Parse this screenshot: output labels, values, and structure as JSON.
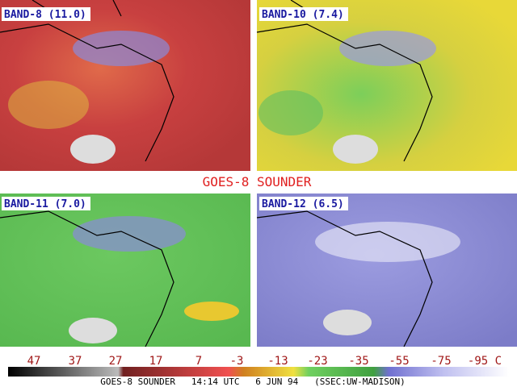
{
  "title": "GOES-8 SOUNDER",
  "panels": [
    {
      "label": "BAND-8 (11.0)"
    },
    {
      "label": "BAND-10 (7.4)"
    },
    {
      "label": "BAND-11 (7.0)"
    },
    {
      "label": "BAND-12 (6.5)"
    }
  ],
  "scale": {
    "labels": [
      "47",
      "37",
      "27",
      "17",
      "7",
      "-3",
      "-13",
      "-23",
      "-35",
      "-55",
      "-75",
      "-95 C"
    ]
  },
  "footer": "GOES-8 SOUNDER   14:14 UTC   6 JUN 94   (SSEC:UW-MADISON)"
}
